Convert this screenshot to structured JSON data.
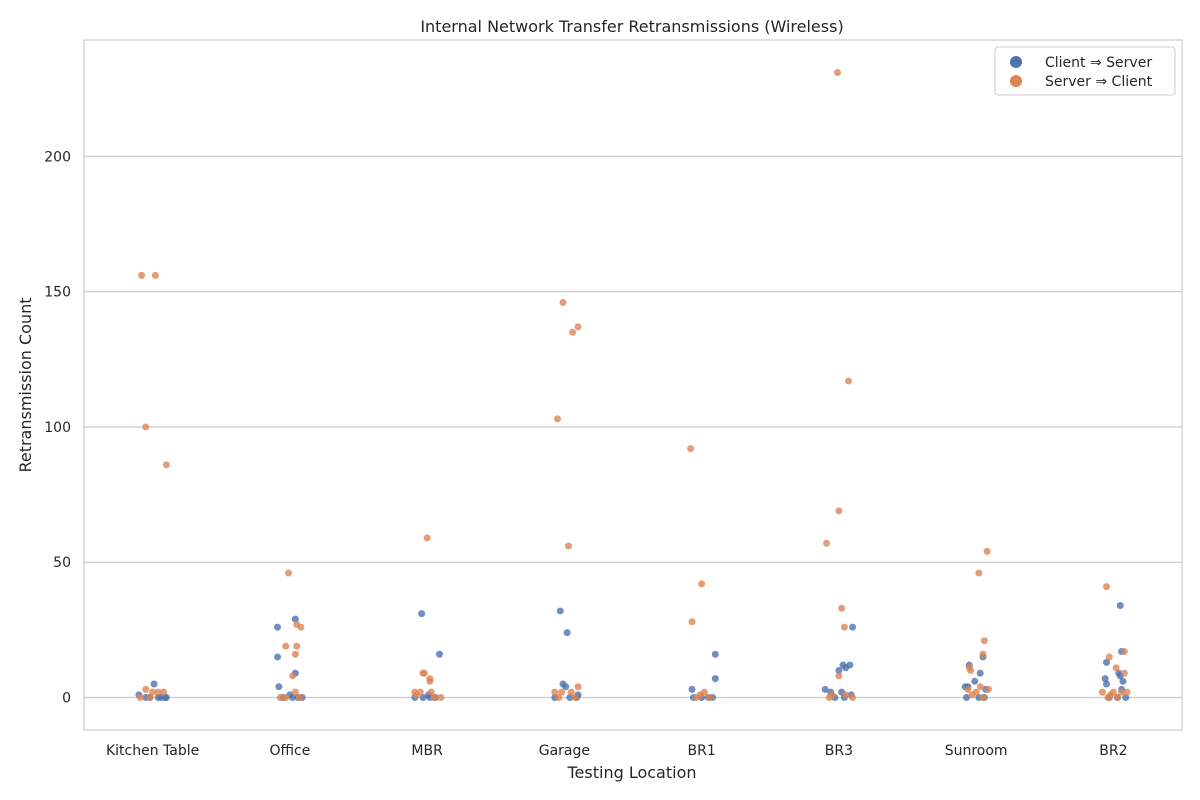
{
  "chart_data": {
    "type": "scatter",
    "title": "Internal Network Transfer Retransmissions (Wireless)",
    "xlabel": "Testing Location",
    "ylabel": "Retransmission Count",
    "categories": [
      "Kitchen Table",
      "Office",
      "MBR",
      "Garage",
      "BR1",
      "BR3",
      "Sunroom",
      "BR2"
    ],
    "ylim": [
      -12,
      243
    ],
    "yticks": [
      0,
      50,
      100,
      150,
      200
    ],
    "grid": true,
    "legend_position": "top-right",
    "series": [
      {
        "name": "Client ⇒ Server",
        "color": "#4c72b0",
        "points": [
          {
            "category": "Kitchen Table",
            "jitter": -0.1,
            "value": 1
          },
          {
            "category": "Kitchen Table",
            "jitter": -0.05,
            "value": 0
          },
          {
            "category": "Kitchen Table",
            "jitter": 0.01,
            "value": 5
          },
          {
            "category": "Kitchen Table",
            "jitter": 0.04,
            "value": 0
          },
          {
            "category": "Kitchen Table",
            "jitter": 0.09,
            "value": 0
          },
          {
            "category": "Kitchen Table",
            "jitter": -0.02,
            "value": 0
          },
          {
            "category": "Kitchen Table",
            "jitter": 0.06,
            "value": 0
          },
          {
            "category": "Kitchen Table",
            "jitter": 0.1,
            "value": 0
          },
          {
            "category": "Office",
            "jitter": -0.09,
            "value": 26
          },
          {
            "category": "Office",
            "jitter": -0.09,
            "value": 15
          },
          {
            "category": "Office",
            "jitter": -0.08,
            "value": 4
          },
          {
            "category": "Office",
            "jitter": 0.04,
            "value": 29
          },
          {
            "category": "Office",
            "jitter": 0.04,
            "value": 9
          },
          {
            "category": "Office",
            "jitter": 0.0,
            "value": 1
          },
          {
            "category": "Office",
            "jitter": -0.05,
            "value": 0
          },
          {
            "category": "Office",
            "jitter": 0.02,
            "value": 0
          },
          {
            "category": "Office",
            "jitter": 0.06,
            "value": 0
          },
          {
            "category": "Office",
            "jitter": 0.09,
            "value": 0
          },
          {
            "category": "MBR",
            "jitter": -0.04,
            "value": 31
          },
          {
            "category": "MBR",
            "jitter": 0.09,
            "value": 16
          },
          {
            "category": "MBR",
            "jitter": -0.09,
            "value": 0
          },
          {
            "category": "MBR",
            "jitter": -0.03,
            "value": 0
          },
          {
            "category": "MBR",
            "jitter": 0.02,
            "value": 0
          },
          {
            "category": "MBR",
            "jitter": 0.06,
            "value": 0
          },
          {
            "category": "MBR",
            "jitter": 0.01,
            "value": 1
          },
          {
            "category": "Garage",
            "jitter": -0.03,
            "value": 32
          },
          {
            "category": "Garage",
            "jitter": 0.02,
            "value": 24
          },
          {
            "category": "Garage",
            "jitter": -0.01,
            "value": 5
          },
          {
            "category": "Garage",
            "jitter": 0.01,
            "value": 4
          },
          {
            "category": "Garage",
            "jitter": -0.07,
            "value": 0
          },
          {
            "category": "Garage",
            "jitter": 0.04,
            "value": 0
          },
          {
            "category": "Garage",
            "jitter": 0.09,
            "value": 0
          },
          {
            "category": "Garage",
            "jitter": 0.1,
            "value": 1
          },
          {
            "category": "BR1",
            "jitter": -0.07,
            "value": 3
          },
          {
            "category": "BR1",
            "jitter": 0.1,
            "value": 16
          },
          {
            "category": "BR1",
            "jitter": 0.1,
            "value": 7
          },
          {
            "category": "BR1",
            "jitter": -0.06,
            "value": 0
          },
          {
            "category": "BR1",
            "jitter": 0.0,
            "value": 0
          },
          {
            "category": "BR1",
            "jitter": 0.05,
            "value": 0
          },
          {
            "category": "BR1",
            "jitter": 0.08,
            "value": 0
          },
          {
            "category": "BR3",
            "jitter": -0.1,
            "value": 3
          },
          {
            "category": "BR3",
            "jitter": 0.0,
            "value": 10
          },
          {
            "category": "BR3",
            "jitter": 0.03,
            "value": 12
          },
          {
            "category": "BR3",
            "jitter": 0.05,
            "value": 11
          },
          {
            "category": "BR3",
            "jitter": 0.08,
            "value": 12
          },
          {
            "category": "BR3",
            "jitter": 0.1,
            "value": 26
          },
          {
            "category": "BR3",
            "jitter": -0.06,
            "value": 2
          },
          {
            "category": "BR3",
            "jitter": 0.02,
            "value": 2
          },
          {
            "category": "BR3",
            "jitter": -0.03,
            "value": 0
          },
          {
            "category": "BR3",
            "jitter": 0.04,
            "value": 0
          },
          {
            "category": "BR3",
            "jitter": 0.09,
            "value": 1
          },
          {
            "category": "Sunroom",
            "jitter": -0.05,
            "value": 12
          },
          {
            "category": "Sunroom",
            "jitter": 0.03,
            "value": 9
          },
          {
            "category": "Sunroom",
            "jitter": 0.05,
            "value": 15
          },
          {
            "category": "Sunroom",
            "jitter": -0.01,
            "value": 6
          },
          {
            "category": "Sunroom",
            "jitter": -0.08,
            "value": 4
          },
          {
            "category": "Sunroom",
            "jitter": -0.06,
            "value": 4
          },
          {
            "category": "Sunroom",
            "jitter": 0.07,
            "value": 3
          },
          {
            "category": "Sunroom",
            "jitter": -0.07,
            "value": 0
          },
          {
            "category": "Sunroom",
            "jitter": 0.02,
            "value": 0
          },
          {
            "category": "Sunroom",
            "jitter": 0.06,
            "value": 0
          },
          {
            "category": "BR2",
            "jitter": -0.05,
            "value": 13
          },
          {
            "category": "BR2",
            "jitter": 0.05,
            "value": 34
          },
          {
            "category": "BR2",
            "jitter": 0.06,
            "value": 17
          },
          {
            "category": "BR2",
            "jitter": 0.04,
            "value": 9
          },
          {
            "category": "BR2",
            "jitter": 0.05,
            "value": 8
          },
          {
            "category": "BR2",
            "jitter": 0.07,
            "value": 6
          },
          {
            "category": "BR2",
            "jitter": -0.06,
            "value": 7
          },
          {
            "category": "BR2",
            "jitter": -0.05,
            "value": 5
          },
          {
            "category": "BR2",
            "jitter": 0.06,
            "value": 3
          },
          {
            "category": "BR2",
            "jitter": -0.03,
            "value": 0
          },
          {
            "category": "BR2",
            "jitter": 0.03,
            "value": 0
          },
          {
            "category": "BR2",
            "jitter": 0.09,
            "value": 0
          }
        ]
      },
      {
        "name": "Server ⇒ Client",
        "color": "#dd8452",
        "points": [
          {
            "category": "Kitchen Table",
            "jitter": -0.08,
            "value": 156
          },
          {
            "category": "Kitchen Table",
            "jitter": 0.02,
            "value": 156
          },
          {
            "category": "Kitchen Table",
            "jitter": -0.05,
            "value": 100
          },
          {
            "category": "Kitchen Table",
            "jitter": 0.1,
            "value": 86
          },
          {
            "category": "Kitchen Table",
            "jitter": -0.05,
            "value": 3
          },
          {
            "category": "Kitchen Table",
            "jitter": 0.0,
            "value": 2
          },
          {
            "category": "Kitchen Table",
            "jitter": 0.04,
            "value": 2
          },
          {
            "category": "Kitchen Table",
            "jitter": 0.08,
            "value": 2
          },
          {
            "category": "Kitchen Table",
            "jitter": -0.09,
            "value": 0
          },
          {
            "category": "Kitchen Table",
            "jitter": -0.02,
            "value": 0
          },
          {
            "category": "Office",
            "jitter": -0.01,
            "value": 46
          },
          {
            "category": "Office",
            "jitter": -0.03,
            "value": 19
          },
          {
            "category": "Office",
            "jitter": 0.05,
            "value": 19
          },
          {
            "category": "Office",
            "jitter": 0.05,
            "value": 27
          },
          {
            "category": "Office",
            "jitter": 0.08,
            "value": 26
          },
          {
            "category": "Office",
            "jitter": 0.04,
            "value": 16
          },
          {
            "category": "Office",
            "jitter": 0.02,
            "value": 8
          },
          {
            "category": "Office",
            "jitter": 0.04,
            "value": 2
          },
          {
            "category": "Office",
            "jitter": -0.07,
            "value": 0
          },
          {
            "category": "Office",
            "jitter": -0.03,
            "value": 0
          },
          {
            "category": "Office",
            "jitter": 0.07,
            "value": 0
          },
          {
            "category": "MBR",
            "jitter": 0.0,
            "value": 59
          },
          {
            "category": "MBR",
            "jitter": -0.03,
            "value": 9
          },
          {
            "category": "MBR",
            "jitter": -0.02,
            "value": 9
          },
          {
            "category": "MBR",
            "jitter": 0.02,
            "value": 7
          },
          {
            "category": "MBR",
            "jitter": 0.02,
            "value": 6
          },
          {
            "category": "MBR",
            "jitter": -0.09,
            "value": 2
          },
          {
            "category": "MBR",
            "jitter": -0.05,
            "value": 2
          },
          {
            "category": "MBR",
            "jitter": 0.03,
            "value": 2
          },
          {
            "category": "MBR",
            "jitter": -0.08,
            "value": 1
          },
          {
            "category": "MBR",
            "jitter": 0.05,
            "value": 0
          },
          {
            "category": "MBR",
            "jitter": 0.1,
            "value": 0
          },
          {
            "category": "Garage",
            "jitter": -0.01,
            "value": 146
          },
          {
            "category": "Garage",
            "jitter": 0.1,
            "value": 137
          },
          {
            "category": "Garage",
            "jitter": 0.06,
            "value": 135
          },
          {
            "category": "Garage",
            "jitter": -0.05,
            "value": 103
          },
          {
            "category": "Garage",
            "jitter": 0.03,
            "value": 56
          },
          {
            "category": "Garage",
            "jitter": 0.1,
            "value": 4
          },
          {
            "category": "Garage",
            "jitter": -0.07,
            "value": 2
          },
          {
            "category": "Garage",
            "jitter": -0.02,
            "value": 2
          },
          {
            "category": "Garage",
            "jitter": 0.05,
            "value": 2
          },
          {
            "category": "Garage",
            "jitter": -0.04,
            "value": 0
          },
          {
            "category": "Garage",
            "jitter": 0.08,
            "value": 0
          },
          {
            "category": "BR1",
            "jitter": -0.08,
            "value": 92
          },
          {
            "category": "BR1",
            "jitter": 0.0,
            "value": 42
          },
          {
            "category": "BR1",
            "jitter": -0.07,
            "value": 28
          },
          {
            "category": "BR1",
            "jitter": 0.02,
            "value": 2
          },
          {
            "category": "BR1",
            "jitter": -0.01,
            "value": 1
          },
          {
            "category": "BR1",
            "jitter": -0.04,
            "value": 0
          },
          {
            "category": "BR1",
            "jitter": 0.06,
            "value": 0
          },
          {
            "category": "BR3",
            "jitter": -0.01,
            "value": 231
          },
          {
            "category": "BR3",
            "jitter": 0.07,
            "value": 117
          },
          {
            "category": "BR3",
            "jitter": 0.0,
            "value": 69
          },
          {
            "category": "BR3",
            "jitter": -0.09,
            "value": 57
          },
          {
            "category": "BR3",
            "jitter": 0.02,
            "value": 33
          },
          {
            "category": "BR3",
            "jitter": 0.04,
            "value": 26
          },
          {
            "category": "BR3",
            "jitter": 0.0,
            "value": 8
          },
          {
            "category": "BR3",
            "jitter": -0.05,
            "value": 1
          },
          {
            "category": "BR3",
            "jitter": 0.05,
            "value": 1
          },
          {
            "category": "BR3",
            "jitter": -0.07,
            "value": 0
          },
          {
            "category": "BR3",
            "jitter": 0.1,
            "value": 0
          },
          {
            "category": "Sunroom",
            "jitter": 0.08,
            "value": 54
          },
          {
            "category": "Sunroom",
            "jitter": 0.02,
            "value": 46
          },
          {
            "category": "Sunroom",
            "jitter": 0.06,
            "value": 21
          },
          {
            "category": "Sunroom",
            "jitter": 0.05,
            "value": 16
          },
          {
            "category": "Sunroom",
            "jitter": -0.05,
            "value": 11
          },
          {
            "category": "Sunroom",
            "jitter": -0.04,
            "value": 10
          },
          {
            "category": "Sunroom",
            "jitter": 0.03,
            "value": 4
          },
          {
            "category": "Sunroom",
            "jitter": -0.06,
            "value": 3
          },
          {
            "category": "Sunroom",
            "jitter": 0.09,
            "value": 3
          },
          {
            "category": "Sunroom",
            "jitter": 0.0,
            "value": 2
          },
          {
            "category": "Sunroom",
            "jitter": -0.03,
            "value": 1
          },
          {
            "category": "Sunroom",
            "jitter": 0.05,
            "value": 0
          },
          {
            "category": "BR2",
            "jitter": -0.05,
            "value": 41
          },
          {
            "category": "BR2",
            "jitter": -0.03,
            "value": 15
          },
          {
            "category": "BR2",
            "jitter": 0.08,
            "value": 17
          },
          {
            "category": "BR2",
            "jitter": 0.02,
            "value": 11
          },
          {
            "category": "BR2",
            "jitter": 0.08,
            "value": 9
          },
          {
            "category": "BR2",
            "jitter": -0.08,
            "value": 2
          },
          {
            "category": "BR2",
            "jitter": 0.0,
            "value": 2
          },
          {
            "category": "BR2",
            "jitter": 0.06,
            "value": 2
          },
          {
            "category": "BR2",
            "jitter": 0.1,
            "value": 2
          },
          {
            "category": "BR2",
            "jitter": -0.02,
            "value": 1
          },
          {
            "category": "BR2",
            "jitter": 0.03,
            "value": 0
          },
          {
            "category": "BR2",
            "jitter": -0.04,
            "value": 0
          }
        ]
      }
    ]
  }
}
